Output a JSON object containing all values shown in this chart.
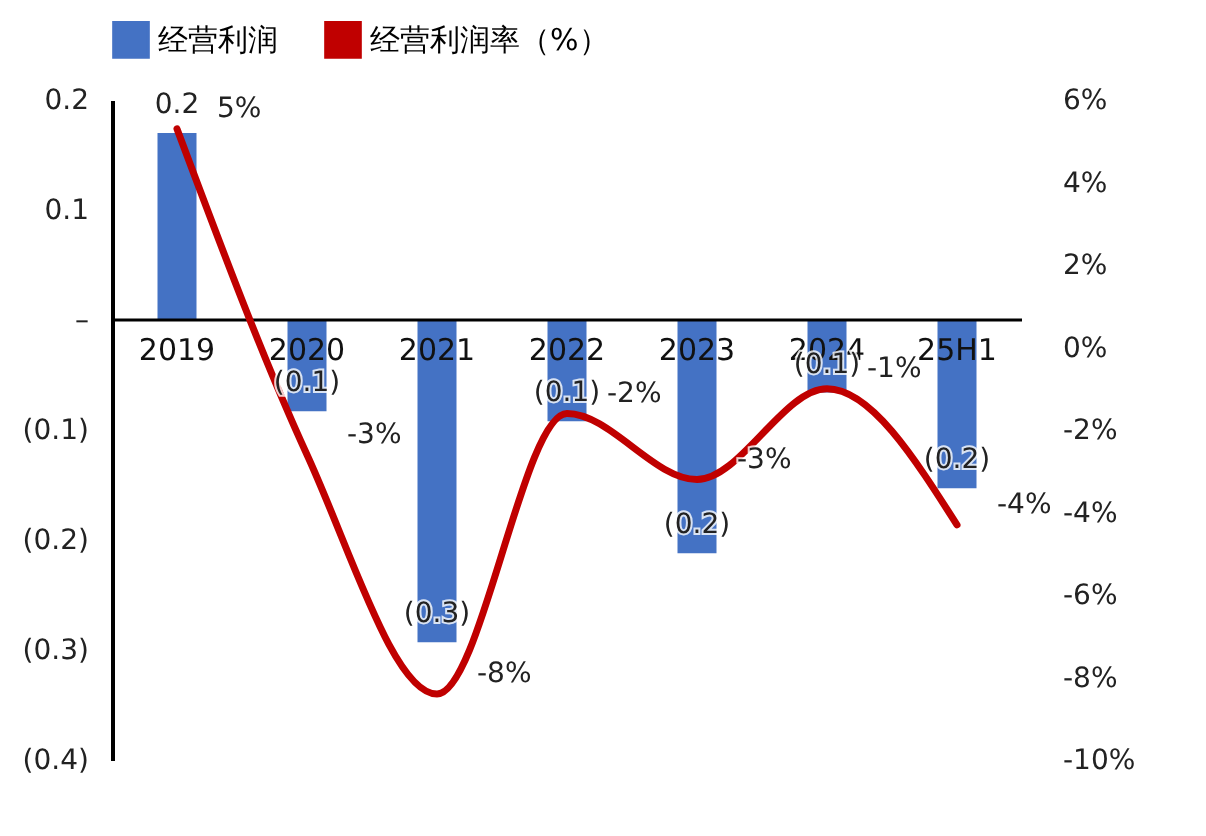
{
  "chart_data": {
    "type": "bar",
    "categories": [
      "2019",
      "2020",
      "2021",
      "2022",
      "2023",
      "2024",
      "25H1"
    ],
    "legend": "top",
    "series": [
      {
        "name": "经营利润",
        "color": "#4472c4",
        "values": [
          0.17,
          -0.083,
          -0.293,
          -0.092,
          -0.212,
          -0.066,
          -0.153
        ],
        "value_labels": [
          "0.2",
          "(0.1)",
          "(0.3)",
          "(0.1)",
          "(0.2)",
          "(0.1)",
          "(0.2)"
        ]
      },
      {
        "name": "经营利润率（%）",
        "type": "line",
        "axis": "y2",
        "color": "#c00000",
        "values": [
          5.3,
          -2.6,
          -8.4,
          -1.6,
          -3.2,
          -1.0,
          -4.3
        ],
        "value_labels": [
          "5%",
          "-3%",
          "-8%",
          "-2%",
          "-3%",
          "-1%",
          "-4%"
        ]
      }
    ],
    "ylim": [
      -0.4,
      0.2
    ],
    "yticks": [
      0.2,
      0.1,
      {
        "value": 0,
        "label": "–"
      },
      {
        "value": -0.1,
        "label": "(0.1)"
      },
      {
        "value": -0.2,
        "label": "(0.2)"
      },
      {
        "value": -0.3,
        "label": "(0.3)"
      },
      {
        "value": -0.4,
        "label": "(0.4)"
      }
    ],
    "y2lim": [
      -10,
      6
    ],
    "y2ticks": [
      {
        "value": 6,
        "label": "6%"
      },
      {
        "value": 4,
        "label": "4%"
      },
      {
        "value": 2,
        "label": "2%"
      },
      {
        "value": 0,
        "label": "0%"
      },
      {
        "value": -2,
        "label": "-2%"
      },
      {
        "value": -4,
        "label": "-4%"
      },
      {
        "value": -6,
        "label": "-6%"
      },
      {
        "value": -8,
        "label": "-8%"
      },
      {
        "value": -10,
        "label": "-10%"
      }
    ]
  }
}
